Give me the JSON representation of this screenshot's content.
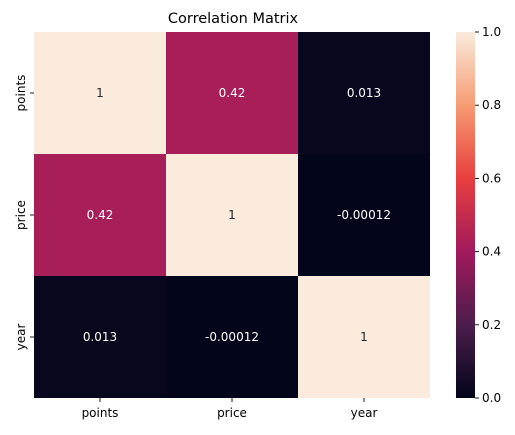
{
  "chart_data": {
    "type": "heatmap",
    "title": "Correlation Matrix",
    "xlabel": "",
    "ylabel": "",
    "row_labels": [
      "points",
      "price",
      "year"
    ],
    "col_labels": [
      "points",
      "price",
      "year"
    ],
    "values": [
      [
        1,
        0.42,
        0.013
      ],
      [
        0.42,
        1,
        -0.00012
      ],
      [
        0.013,
        -0.00012,
        1
      ]
    ],
    "annotations": [
      [
        "1",
        "0.42",
        "0.013"
      ],
      [
        "0.42",
        "1",
        "-0.00012"
      ],
      [
        "0.013",
        "-0.00012",
        "1"
      ]
    ],
    "colorbar": {
      "vmin": 0.0,
      "vmax": 1.0,
      "ticks": [
        0.0,
        0.2,
        0.4,
        0.6,
        0.8,
        1.0
      ],
      "tick_labels": [
        "0.0",
        "0.2",
        "0.4",
        "0.6",
        "0.8",
        "1.0"
      ],
      "colormap": "rocket",
      "color_stops": [
        "#03051a",
        "#4c1d4b",
        "#a11a5b",
        "#e83f3f",
        "#f69c73",
        "#faebdd"
      ]
    },
    "annotation_colors": {
      "on_dark": "#ffffff",
      "on_light": "#262626"
    }
  }
}
